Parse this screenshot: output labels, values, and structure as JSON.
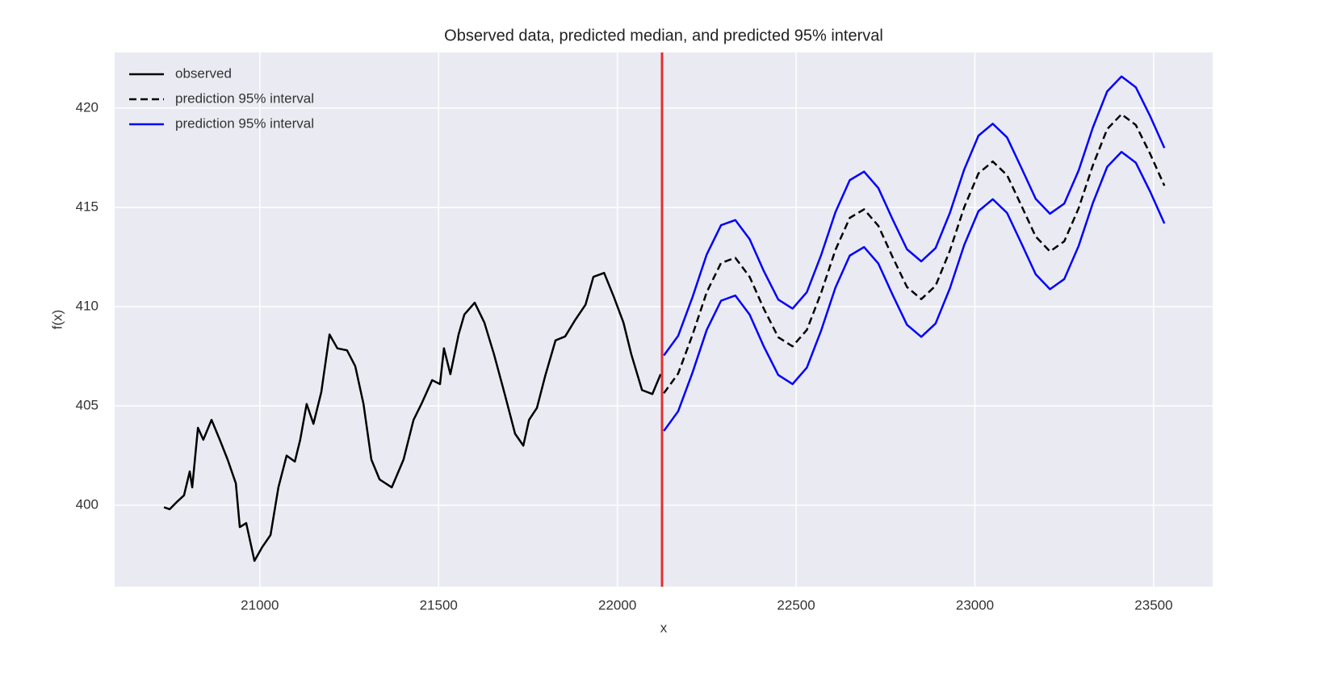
{
  "chart_data": {
    "type": "line",
    "title": "Observed data, predicted median, and predicted 95% interval",
    "xlabel": "x",
    "ylabel": "f(x)",
    "xlim": [
      20594,
      23665
    ],
    "ylim": [
      395.9,
      422.8
    ],
    "xticks": [
      21000,
      21500,
      22000,
      22500,
      23000,
      23500
    ],
    "yticks": [
      400,
      405,
      410,
      415,
      420
    ],
    "grid": true,
    "legend": "upper left",
    "vline": 22125,
    "vline_color": "#e03030",
    "series": [
      {
        "name": "observed",
        "color": "#000000",
        "x": [
          20732,
          20748,
          20770,
          20788,
          20804,
          20811,
          20827,
          20842,
          20865,
          20888,
          20910,
          20933,
          20944,
          20962,
          20985,
          21007,
          21030,
          21052,
          21075,
          21098,
          21113,
          21131,
          21150,
          21172,
          21195,
          21217,
          21244,
          21267,
          21290,
          21312,
          21335,
          21369,
          21402,
          21430,
          21452,
          21482,
          21504,
          21515,
          21533,
          21556,
          21572,
          21601,
          21628,
          21655,
          21685,
          21714,
          21737,
          21753,
          21775,
          21798,
          21827,
          21854,
          21881,
          21911,
          21933,
          21963,
          21990,
          22017,
          22039,
          22069,
          22098,
          22121
        ],
        "values": [
          399.9,
          399.8,
          400.2,
          400.5,
          401.7,
          400.9,
          403.9,
          403.3,
          404.3,
          403.3,
          402.3,
          401.1,
          398.9,
          399.1,
          397.2,
          397.9,
          398.5,
          400.9,
          402.5,
          402.2,
          403.3,
          405.1,
          404.1,
          405.7,
          408.6,
          407.9,
          407.8,
          407.0,
          405.1,
          402.3,
          401.3,
          400.9,
          402.3,
          404.3,
          405.1,
          406.3,
          406.1,
          407.9,
          406.6,
          408.6,
          409.6,
          410.2,
          409.2,
          407.6,
          405.6,
          403.6,
          403.0,
          404.3,
          404.9,
          406.5,
          408.3,
          408.5,
          409.3,
          410.1,
          411.5,
          411.7,
          410.5,
          409.2,
          407.6,
          405.8,
          405.6,
          406.6
        ]
      },
      {
        "name": "prediction 95% interval",
        "color": "#000000",
        "dash": true,
        "x": [
          22130,
          22170,
          22210,
          22250,
          22290,
          22330,
          22370,
          22410,
          22450,
          22490,
          22530,
          22570,
          22610,
          22650,
          22690,
          22730,
          22770,
          22810,
          22850,
          22890,
          22930,
          22970,
          23010,
          23050,
          23090,
          23130,
          23170,
          23210,
          23250,
          23290,
          23330,
          23370,
          23410,
          23450,
          23490,
          23530
        ],
        "values": [
          405.64,
          406.63,
          408.57,
          410.73,
          412.2,
          412.46,
          411.5,
          409.88,
          408.46,
          408.0,
          408.83,
          410.7,
          412.86,
          414.47,
          414.9,
          414.07,
          412.49,
          410.99,
          410.38,
          411.05,
          412.82,
          415.0,
          416.71,
          417.31,
          416.62,
          415.09,
          413.53,
          412.78,
          413.29,
          414.95,
          417.12,
          418.94,
          419.69,
          419.15,
          417.7,
          416.09
        ]
      },
      {
        "name": "prediction 95% interval",
        "color": "#0000ff",
        "x": [
          22130,
          22170,
          22210,
          22250,
          22290,
          22330,
          22370,
          22410,
          22450,
          22490,
          22530,
          22570,
          22610,
          22650,
          22690,
          22730,
          22770,
          22810,
          22850,
          22890,
          22930,
          22970,
          23010,
          23050,
          23090,
          23130,
          23170,
          23210,
          23250,
          23290,
          23330,
          23370,
          23410,
          23450,
          23490,
          23530
        ],
        "values": [
          407.54,
          408.53,
          410.47,
          412.63,
          414.1,
          414.36,
          413.4,
          411.78,
          410.36,
          409.9,
          410.73,
          412.6,
          414.76,
          416.37,
          416.8,
          415.97,
          414.39,
          412.89,
          412.28,
          412.95,
          414.72,
          416.9,
          418.61,
          419.21,
          418.52,
          416.99,
          415.43,
          414.68,
          415.19,
          416.85,
          419.02,
          420.84,
          421.59,
          421.05,
          419.6,
          417.99
        ],
        "lower": [
          403.74,
          404.73,
          406.67,
          408.83,
          410.3,
          410.56,
          409.6,
          407.98,
          406.56,
          406.1,
          406.93,
          408.8,
          410.96,
          412.57,
          413.0,
          412.17,
          410.59,
          409.09,
          408.48,
          409.15,
          410.92,
          413.1,
          414.81,
          415.41,
          414.72,
          413.19,
          411.63,
          410.88,
          411.39,
          413.05,
          415.22,
          417.04,
          417.79,
          417.25,
          415.8,
          414.19
        ]
      }
    ]
  }
}
